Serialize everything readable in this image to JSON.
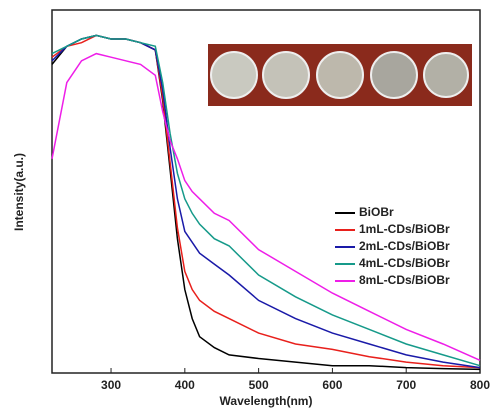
{
  "chart_data": {
    "type": "line",
    "xlabel": "Wavelength(nm)",
    "ylabel": "Intensity(a.u.)",
    "x": [
      220,
      240,
      260,
      280,
      300,
      320,
      340,
      360,
      370,
      380,
      390,
      400,
      410,
      420,
      440,
      460,
      500,
      550,
      600,
      650,
      700,
      750,
      800
    ],
    "xlim": [
      220,
      800
    ],
    "xticks": [
      300,
      400,
      500,
      600,
      700,
      800
    ],
    "ylim": [
      0,
      1
    ],
    "legend": "right",
    "series": [
      {
        "name": "BiOBr",
        "color": "#000000",
        "values": [
          0.85,
          0.9,
          0.92,
          0.93,
          0.92,
          0.92,
          0.91,
          0.89,
          0.75,
          0.56,
          0.37,
          0.23,
          0.15,
          0.1,
          0.07,
          0.05,
          0.04,
          0.03,
          0.02,
          0.02,
          0.015,
          0.012,
          0.01
        ]
      },
      {
        "name": "1mL-CDs/BiOBr",
        "color": "#e8201c",
        "values": [
          0.87,
          0.9,
          0.91,
          0.93,
          0.92,
          0.92,
          0.91,
          0.89,
          0.76,
          0.58,
          0.4,
          0.28,
          0.23,
          0.2,
          0.17,
          0.15,
          0.11,
          0.08,
          0.065,
          0.045,
          0.03,
          0.02,
          0.015
        ]
      },
      {
        "name": "2mL-CDs/BiOBr",
        "color": "#1a1aa8",
        "values": [
          0.86,
          0.9,
          0.92,
          0.93,
          0.92,
          0.92,
          0.91,
          0.89,
          0.78,
          0.62,
          0.48,
          0.39,
          0.36,
          0.33,
          0.3,
          0.27,
          0.2,
          0.15,
          0.11,
          0.08,
          0.05,
          0.03,
          0.015
        ]
      },
      {
        "name": "4mL-CDs/BiOBr",
        "color": "#169a8a",
        "values": [
          0.88,
          0.9,
          0.92,
          0.93,
          0.92,
          0.92,
          0.91,
          0.9,
          0.8,
          0.66,
          0.55,
          0.48,
          0.44,
          0.41,
          0.37,
          0.35,
          0.27,
          0.21,
          0.16,
          0.12,
          0.08,
          0.05,
          0.02
        ]
      },
      {
        "name": "8mL-CDs/BiOBr",
        "color": "#ee1ee8",
        "values": [
          0.59,
          0.8,
          0.86,
          0.88,
          0.87,
          0.86,
          0.85,
          0.82,
          0.72,
          0.64,
          0.59,
          0.53,
          0.5,
          0.48,
          0.44,
          0.42,
          0.34,
          0.28,
          0.22,
          0.17,
          0.12,
          0.08,
          0.035
        ]
      }
    ]
  }
}
